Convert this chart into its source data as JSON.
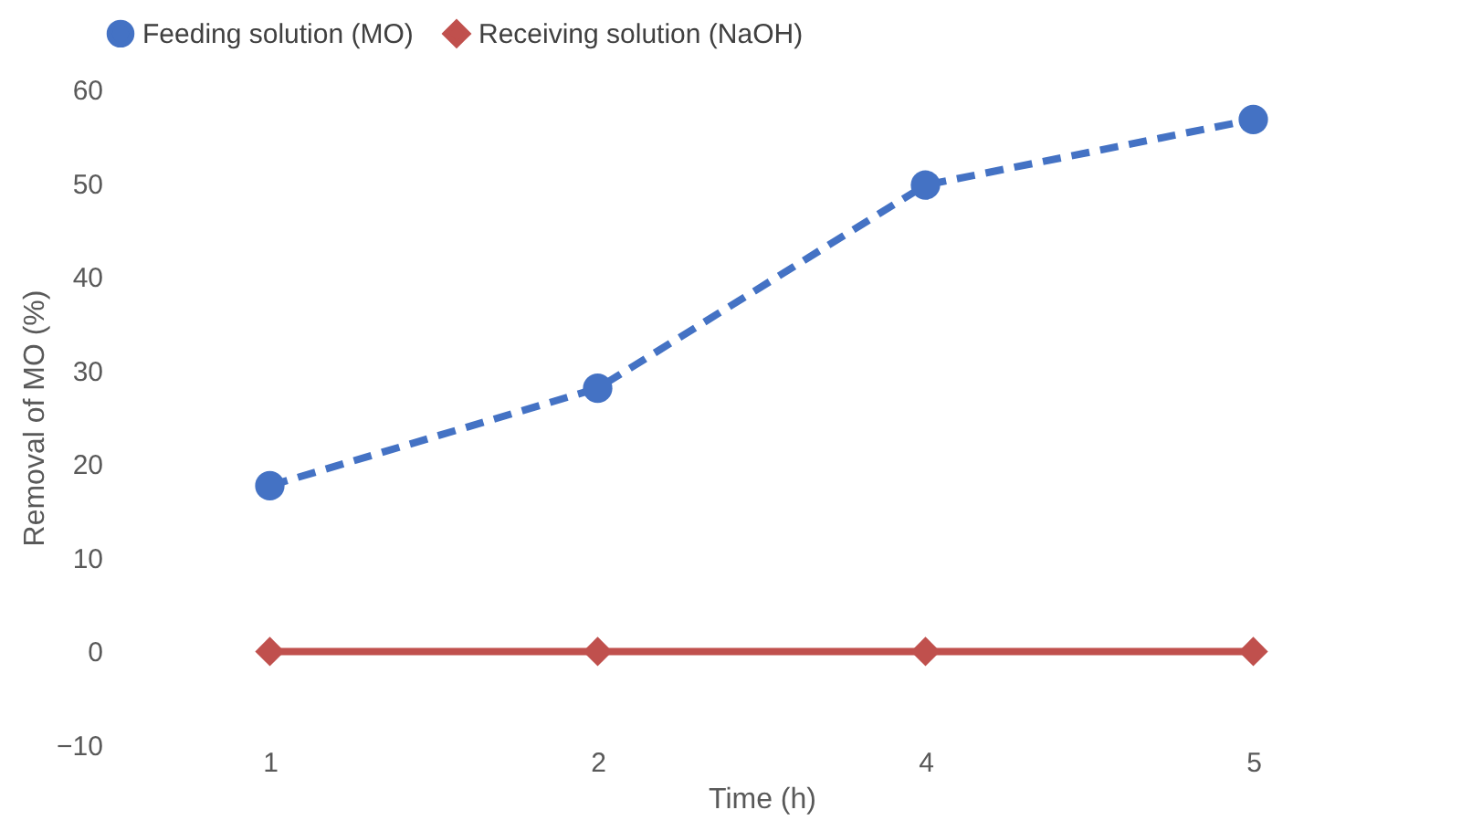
{
  "chart_data": {
    "type": "line",
    "xlabel": "Time (h)",
    "ylabel": "Removal of MO (%)",
    "categories": [
      "1",
      "2",
      "4",
      "5"
    ],
    "series": [
      {
        "name": "Feeding solution (MO)",
        "color": "#4472c4",
        "values": [
          17.7,
          28.1,
          49.8,
          56.8
        ],
        "line_style": "dashed",
        "marker": "circle"
      },
      {
        "name": "Receiving solution (NaOH)",
        "color": "#c0504d",
        "values": [
          0,
          0,
          0,
          0
        ],
        "line_style": "solid",
        "marker": "diamond"
      }
    ],
    "ylim": [
      -10,
      60
    ],
    "yticks": [
      -10,
      0,
      10,
      20,
      30,
      40,
      50,
      60
    ],
    "grid": false,
    "legend": "top"
  }
}
